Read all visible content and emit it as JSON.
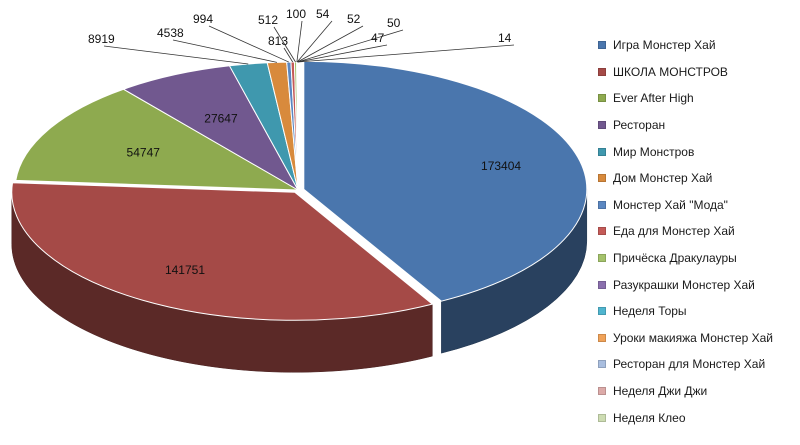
{
  "chart_data": {
    "type": "pie",
    "title": "",
    "legend_position": "right",
    "categories": [
      "Игра Монстер Хай",
      "ШКОЛА МОНСТРОВ",
      "Ever After High",
      "Ресторан",
      "Мир Монстров",
      "Дом Монстер Хай",
      "Монстер Хай \"Мода\"",
      "Еда для Монстер Хай",
      "Причёска Дракулауры",
      "Разукрашки Монстер Хай",
      "Неделя Торы",
      "Уроки макияжа Монстер Хай",
      "Ресторан для Монстер Хай",
      "Неделя Джи Джи",
      "Неделя Клео"
    ],
    "values": [
      173404,
      141751,
      54747,
      27647,
      8919,
      4538,
      994,
      813,
      512,
      100,
      54,
      52,
      50,
      47,
      14
    ],
    "labels": [
      "173404",
      "141751",
      "54747",
      "27647",
      "8919",
      "4538",
      "994",
      "813",
      "512",
      "100",
      "54",
      "52",
      "50",
      "47",
      "14"
    ],
    "colors": [
      "#4a76ad",
      "#a54a47",
      "#8eaa4f",
      "#71588f",
      "#3f98ae",
      "#d88a3c",
      "#5b87c1",
      "#c45a57",
      "#a4c26b",
      "#8a6fad",
      "#4fb5cf",
      "#f0a258",
      "#a9bedf",
      "#dcaaa8",
      "#cddcb2"
    ]
  }
}
